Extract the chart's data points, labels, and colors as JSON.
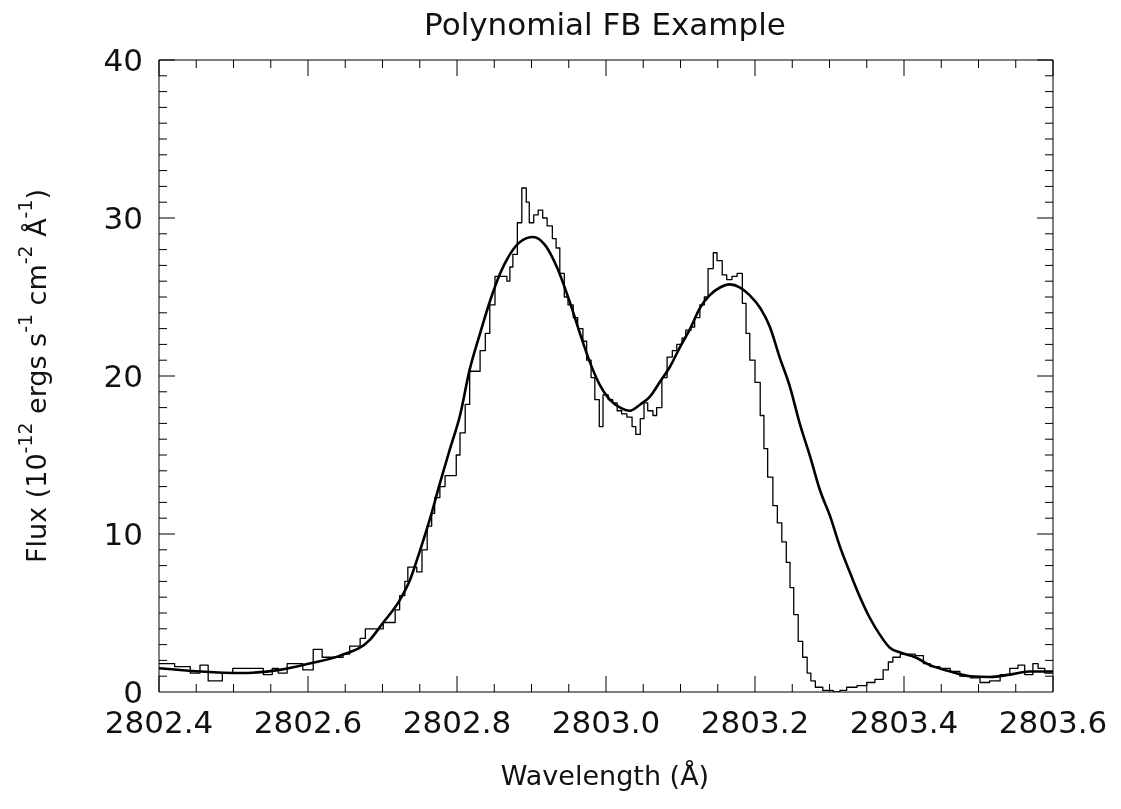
{
  "chart_data": {
    "type": "line",
    "title": "Polynomial FB Example",
    "xlabel": "Wavelength (Å)",
    "ylabel": "Flux (10$^{-12}$ ergs s$^{-1}$ cm$^{-2}$ Å$^{-1}$)",
    "xlim": [
      2802.4,
      2803.6
    ],
    "xticks": [
      2802.4,
      {
        "value": 2802.45,
        "label": null
      },
      {
        "value": 2802.5,
        "label": null
      },
      {
        "value": 2802.55,
        "label": null
      },
      2802.6,
      {
        "value": 2802.65,
        "label": null
      },
      {
        "value": 2802.7,
        "label": null
      },
      {
        "value": 2802.75,
        "label": null
      },
      2802.8,
      {
        "value": 2802.85,
        "label": null
      },
      {
        "value": 2802.9,
        "label": null
      },
      {
        "value": 2802.95,
        "label": null
      },
      {
        "value": 2803,
        "label": "2803.0"
      },
      {
        "value": 2803.05,
        "label": null
      },
      {
        "value": 2803.1,
        "label": null
      },
      {
        "value": 2803.15,
        "label": null
      },
      2803.2,
      {
        "value": 2803.25,
        "label": null
      },
      {
        "value": 2803.3,
        "label": null
      },
      {
        "value": 2803.35,
        "label": null
      },
      2803.4,
      {
        "value": 2803.45,
        "label": null
      },
      {
        "value": 2803.5,
        "label": null
      },
      {
        "value": 2803.55,
        "label": null
      },
      2803.6
    ],
    "ylim": [
      0,
      40
    ],
    "yticks": [
      0,
      {
        "value": 1,
        "label": null
      },
      {
        "value": 2,
        "label": null
      },
      {
        "value": 3,
        "label": null
      },
      {
        "value": 4,
        "label": null
      },
      {
        "value": 5,
        "label": null
      },
      {
        "value": 6,
        "label": null
      },
      {
        "value": 7,
        "label": null
      },
      {
        "value": 8,
        "label": null
      },
      {
        "value": 9,
        "label": null
      },
      10,
      {
        "value": 11,
        "label": null
      },
      {
        "value": 12,
        "label": null
      },
      {
        "value": 13,
        "label": null
      },
      {
        "value": 14,
        "label": null
      },
      {
        "value": 15,
        "label": null
      },
      {
        "value": 16,
        "label": null
      },
      {
        "value": 17,
        "label": null
      },
      {
        "value": 18,
        "label": null
      },
      {
        "value": 19,
        "label": null
      },
      20,
      {
        "value": 21,
        "label": null
      },
      {
        "value": 22,
        "label": null
      },
      {
        "value": 23,
        "label": null
      },
      {
        "value": 24,
        "label": null
      },
      {
        "value": 25,
        "label": null
      },
      {
        "value": 26,
        "label": null
      },
      {
        "value": 27,
        "label": null
      },
      {
        "value": 28,
        "label": null
      },
      {
        "value": 29,
        "label": null
      },
      30,
      {
        "value": 31,
        "label": null
      },
      {
        "value": 32,
        "label": null
      },
      {
        "value": 33,
        "label": null
      },
      {
        "value": 34,
        "label": null
      },
      {
        "value": 35,
        "label": null
      },
      {
        "value": 36,
        "label": null
      },
      {
        "value": 37,
        "label": null
      },
      {
        "value": 38,
        "label": null
      },
      {
        "value": 39,
        "label": null
      },
      40
    ],
    "series": [
      {
        "type": "step",
        "color": "#000000",
        "x": [
          2802.4,
          2802.421,
          2802.442,
          2802.455,
          2802.466,
          2802.485,
          2802.499,
          2802.525,
          2802.54,
          2802.552,
          2802.56,
          2802.572,
          2802.593,
          2802.607,
          2802.619,
          2802.647,
          2802.656,
          2802.67,
          2802.677,
          2802.701,
          2802.717,
          2802.723,
          2802.73,
          2802.734,
          2802.746,
          2802.753,
          2802.76,
          2802.766,
          2802.77,
          2802.777,
          2802.784,
          2802.799,
          2802.804,
          2802.811,
          2802.817,
          2802.831,
          2802.838,
          2802.844,
          2802.851,
          2802.867,
          2802.871,
          2802.875,
          2802.881,
          2802.887,
          2802.893,
          2802.897,
          2802.903,
          2802.909,
          2802.915,
          2802.921,
          2802.928,
          2802.933,
          2802.938,
          2802.944,
          2802.949,
          2802.956,
          2802.962,
          2802.969,
          2802.974,
          2802.98,
          2802.985,
          2802.991,
          2802.996,
          2803.003,
          2803.009,
          2803.015,
          2803.021,
          2803.028,
          2803.035,
          2803.04,
          2803.046,
          2803.051,
          2803.056,
          2803.063,
          2803.068,
          2803.075,
          2803.082,
          2803.089,
          2803.095,
          2803.102,
          2803.107,
          2803.114,
          2803.119,
          2803.126,
          2803.132,
          2803.137,
          2803.144,
          2803.149,
          2803.156,
          2803.162,
          2803.169,
          2803.176,
          2803.183,
          2803.188,
          2803.193,
          2803.2,
          2803.207,
          2803.212,
          2803.217,
          2803.224,
          2803.23,
          2803.236,
          2803.242,
          2803.247,
          2803.252,
          2803.258,
          2803.264,
          2803.27,
          2803.275,
          2803.281,
          2803.291,
          2803.305,
          2803.314,
          2803.323,
          2803.337,
          2803.35,
          2803.361,
          2803.372,
          2803.379,
          2803.385,
          2803.395,
          2803.415,
          2803.426,
          2803.435,
          2803.448,
          2803.462,
          2803.475,
          2803.489,
          2803.502,
          2803.515,
          2803.529,
          2803.542,
          2803.553,
          2803.562,
          2803.573,
          2803.58,
          2803.589,
          2803.6
        ],
        "values": [
          1.8,
          1.6,
          1.2,
          1.7,
          0.7,
          1.2,
          1.5,
          1.5,
          1.1,
          1.5,
          1.2,
          1.8,
          1.4,
          2.7,
          2.2,
          2.4,
          2.9,
          3.4,
          4.0,
          4.4,
          5.2,
          6.1,
          7.0,
          7.9,
          7.6,
          9.0,
          10.5,
          11.3,
          12.3,
          13.0,
          13.7,
          15.0,
          16.4,
          18.2,
          20.3,
          21.6,
          22.7,
          24.5,
          26.3,
          26.0,
          26.9,
          27.7,
          29.7,
          31.9,
          31.0,
          29.7,
          30.2,
          30.5,
          30.0,
          29.5,
          28.7,
          28.1,
          26.5,
          25.0,
          24.5,
          23.7,
          23.0,
          22.2,
          21.0,
          19.9,
          18.5,
          16.8,
          18.8,
          18.5,
          18.3,
          17.8,
          17.6,
          17.4,
          16.8,
          16.3,
          17.3,
          18.3,
          17.8,
          17.5,
          18.0,
          19.9,
          21.2,
          21.6,
          22.0,
          22.4,
          22.9,
          23.1,
          23.7,
          24.5,
          25.0,
          26.8,
          27.8,
          27.3,
          26.4,
          26.1,
          26.3,
          26.5,
          24.6,
          22.7,
          21.0,
          19.6,
          17.5,
          15.4,
          13.6,
          11.8,
          10.7,
          9.5,
          8.2,
          6.6,
          4.9,
          3.2,
          2.2,
          1.2,
          0.7,
          0.3,
          0.1,
          0.0,
          0.1,
          0.3,
          0.4,
          0.6,
          0.8,
          1.4,
          1.9,
          2.2,
          2.4,
          2.3,
          1.8,
          1.6,
          1.5,
          1.3,
          1.0,
          0.9,
          0.6,
          0.7,
          1.1,
          1.5,
          1.7,
          1.1,
          1.8,
          1.5,
          1.2,
          1.2
        ]
      },
      {
        "type": "line",
        "color": "#000000",
        "x": [
          2802.4,
          2802.455,
          2802.509,
          2802.562,
          2802.602,
          2802.643,
          2802.683,
          2802.701,
          2802.723,
          2802.737,
          2802.75,
          2802.764,
          2802.777,
          2802.79,
          2802.804,
          2802.817,
          2802.831,
          2802.844,
          2802.858,
          2802.871,
          2802.885,
          2802.902,
          2802.918,
          2802.934,
          2802.952,
          2802.965,
          2802.979,
          2802.992,
          2803.005,
          2803.019,
          2803.032,
          2803.046,
          2803.059,
          2803.072,
          2803.086,
          2803.099,
          2803.113,
          2803.126,
          2803.139,
          2803.153,
          2803.166,
          2803.18,
          2803.193,
          2803.207,
          2803.22,
          2803.233,
          2803.247,
          2803.26,
          2803.274,
          2803.287,
          2803.301,
          2803.314,
          2803.328,
          2803.341,
          2803.354,
          2803.368,
          2803.381,
          2803.395,
          2803.415,
          2803.435,
          2803.462,
          2803.489,
          2803.515,
          2803.542,
          2803.568,
          2803.6
        ],
        "values": [
          1.5,
          1.3,
          1.2,
          1.4,
          1.8,
          2.3,
          3.3,
          4.4,
          5.8,
          7.1,
          8.9,
          11.0,
          13.2,
          15.3,
          17.5,
          20.4,
          22.7,
          24.7,
          26.5,
          27.7,
          28.5,
          28.8,
          28.3,
          26.9,
          24.6,
          22.7,
          20.8,
          19.4,
          18.5,
          18.0,
          17.8,
          18.2,
          18.7,
          19.6,
          20.6,
          21.8,
          23.0,
          24.3,
          25.1,
          25.6,
          25.8,
          25.6,
          25.1,
          24.3,
          23.1,
          21.2,
          19.3,
          17.0,
          14.9,
          12.8,
          11.1,
          9.2,
          7.5,
          6.0,
          4.7,
          3.6,
          2.8,
          2.5,
          2.2,
          1.7,
          1.3,
          1.0,
          0.95,
          1.1,
          1.3,
          1.3
        ]
      }
    ]
  }
}
